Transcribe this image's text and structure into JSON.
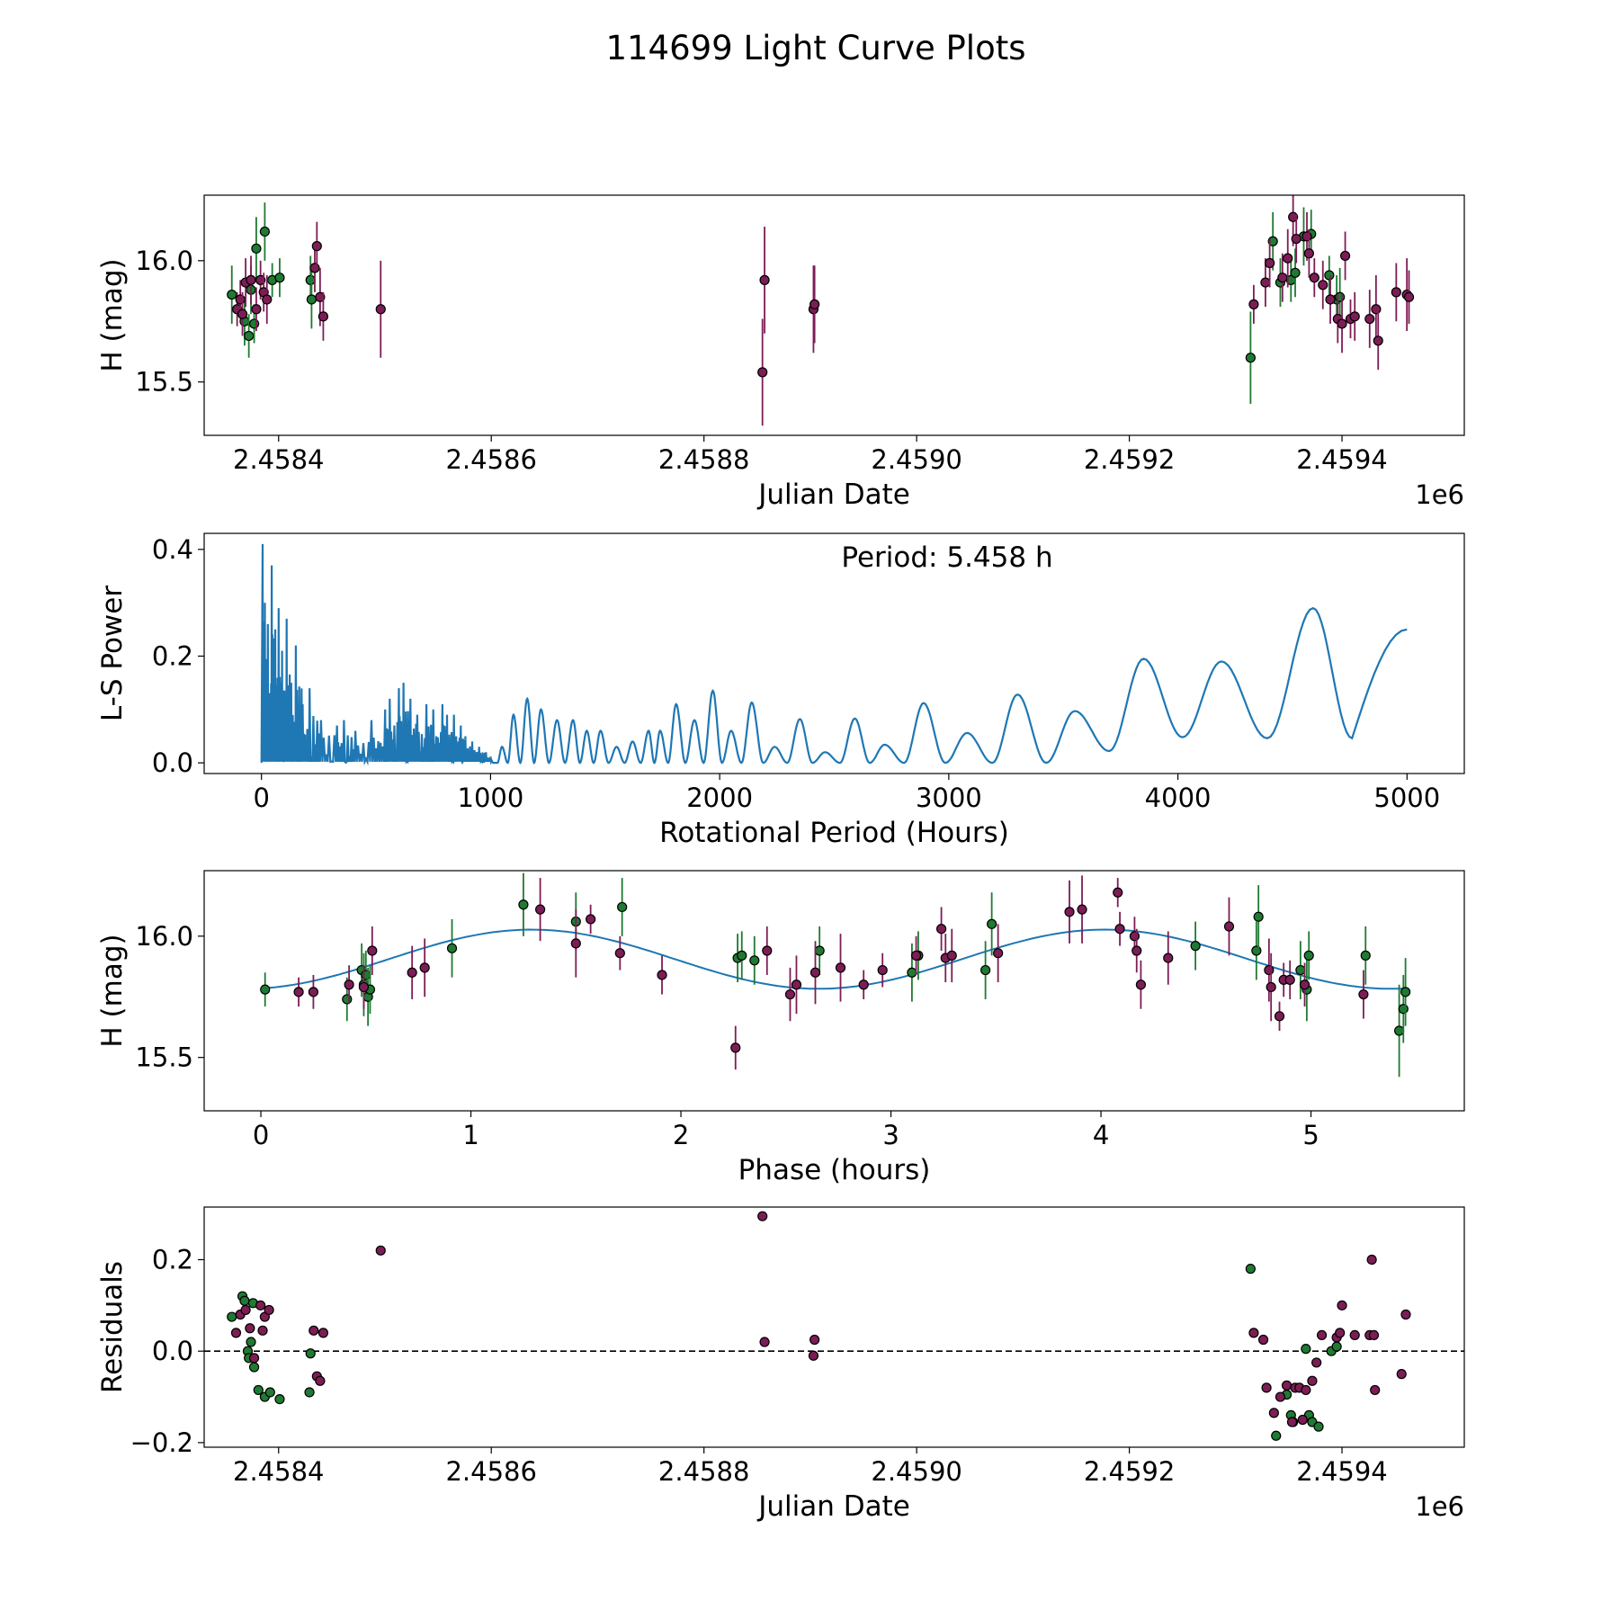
{
  "title": "114699 Light Curve Plots",
  "colors": {
    "green": "#1f7a32",
    "purple": "#7d1d55",
    "curve": "#1f77b4",
    "edge": "#000000"
  },
  "chart_data": [
    {
      "id": "lightcurve",
      "type": "scatter",
      "xlabel": "Julian Date",
      "ylabel": "H (mag)",
      "xlim": [
        2458330,
        2459515
      ],
      "ylim": [
        15.28,
        16.27
      ],
      "x_offset_label": "1e6",
      "xticks": [
        2458400,
        2458600,
        2458800,
        2459000,
        2459200,
        2459400
      ],
      "xtick_labels": [
        "2.4584",
        "2.4586",
        "2.4588",
        "2.4590",
        "2.4592",
        "2.4594"
      ],
      "yticks": [
        15.5,
        16.0
      ],
      "ytick_labels": [
        "15.5",
        "16.0"
      ],
      "series": [
        {
          "name": "green",
          "color": "#1f7a32",
          "x": [
            2458356,
            2458368,
            2458372,
            2458374,
            2458377,
            2458379,
            2458387,
            2458394,
            2458401,
            2458430,
            2458431,
            2459314,
            2459335,
            2459342,
            2459352,
            2459356,
            2459364,
            2459371,
            2459388,
            2459395,
            2459398
          ],
          "y": [
            15.86,
            15.75,
            15.69,
            15.88,
            15.74,
            16.05,
            16.12,
            15.92,
            15.93,
            15.92,
            15.84,
            15.6,
            16.08,
            15.91,
            15.92,
            15.95,
            16.1,
            16.11,
            15.94,
            15.84,
            15.85
          ],
          "err": [
            0.12,
            0.1,
            0.09,
            0.1,
            0.08,
            0.13,
            0.12,
            0.07,
            0.08,
            0.1,
            0.12,
            0.19,
            0.12,
            0.1,
            0.09,
            0.1,
            0.12,
            0.1,
            0.08,
            0.1,
            0.12
          ]
        },
        {
          "name": "purple",
          "color": "#7d1d55",
          "x": [
            2458361,
            2458364,
            2458366,
            2458369,
            2458374,
            2458379,
            2458383,
            2458386,
            2458389,
            2458434,
            2458436,
            2458439,
            2458442,
            2458496,
            2458855,
            2458857,
            2458903,
            2458904,
            2459317,
            2459328,
            2459332,
            2459344,
            2459349,
            2459354,
            2459357,
            2459367,
            2459369,
            2459374,
            2459382,
            2459389,
            2459396,
            2459400,
            2459403,
            2459408,
            2459412,
            2459426,
            2459432,
            2459434,
            2459451,
            2459461,
            2459463
          ],
          "y": [
            15.8,
            15.84,
            15.78,
            15.91,
            15.92,
            15.8,
            15.92,
            15.87,
            15.84,
            15.97,
            16.06,
            15.85,
            15.77,
            15.8,
            15.54,
            15.92,
            15.8,
            15.82,
            15.82,
            15.91,
            15.99,
            15.93,
            16.01,
            16.18,
            16.09,
            16.1,
            16.03,
            15.93,
            15.9,
            15.84,
            15.76,
            15.74,
            16.02,
            15.76,
            15.77,
            15.76,
            15.8,
            15.67,
            15.87,
            15.86,
            15.85
          ],
          "err": [
            0.07,
            0.08,
            0.09,
            0.1,
            0.1,
            0.09,
            0.08,
            0.08,
            0.1,
            0.1,
            0.1,
            0.12,
            0.1,
            0.2,
            0.22,
            0.22,
            0.18,
            0.16,
            0.08,
            0.1,
            0.1,
            0.1,
            0.12,
            0.12,
            0.1,
            0.1,
            0.1,
            0.08,
            0.1,
            0.1,
            0.1,
            0.12,
            0.1,
            0.08,
            0.1,
            0.12,
            0.14,
            0.12,
            0.12,
            0.15,
            0.11
          ]
        }
      ]
    },
    {
      "id": "periodogram",
      "type": "line",
      "xlabel": "Rotational Period (Hours)",
      "ylabel": "L-S Power",
      "xlim": [
        -250,
        5250
      ],
      "ylim": [
        -0.02,
        0.43
      ],
      "xticks": [
        0,
        1000,
        2000,
        3000,
        4000,
        5000
      ],
      "xtick_labels": [
        "0",
        "1000",
        "2000",
        "3000",
        "4000",
        "5000"
      ],
      "yticks": [
        0.0,
        0.2,
        0.4
      ],
      "ytick_labels": [
        "0.0",
        "0.2",
        "0.4"
      ],
      "annotation": "Period: 5.458 h",
      "low_period_spikes": {
        "x": [
          5,
          15,
          28,
          45,
          60,
          75,
          90,
          110,
          130,
          150,
          180,
          210,
          260,
          330,
          360,
          410,
          480,
          540,
          560,
          600,
          620,
          650,
          680,
          720,
          750,
          790,
          810,
          840,
          870,
          890,
          920,
          950,
          980
        ],
        "y": [
          0.41,
          0.3,
          0.26,
          0.37,
          0.25,
          0.29,
          0.21,
          0.27,
          0.15,
          0.22,
          0.11,
          0.14,
          0.08,
          0.07,
          0.08,
          0.06,
          0.08,
          0.1,
          0.12,
          0.14,
          0.15,
          0.12,
          0.09,
          0.11,
          0.1,
          0.11,
          0.09,
          0.09,
          0.07,
          0.05,
          0.04,
          0.03,
          0.02
        ]
      },
      "peak_periods": [
        1050,
        1100,
        1160,
        1220,
        1290,
        1360,
        1420,
        1480,
        1550,
        1620,
        1690,
        1740,
        1810,
        1890,
        1970,
        2050,
        2140,
        2240,
        2350,
        2460,
        2590,
        2720,
        2890,
        3080,
        3300,
        3550,
        3850,
        4190,
        4590
      ],
      "peak_powers": [
        0.03,
        0.09,
        0.12,
        0.1,
        0.08,
        0.08,
        0.06,
        0.06,
        0.03,
        0.04,
        0.06,
        0.06,
        0.11,
        0.08,
        0.135,
        0.06,
        0.113,
        0.03,
        0.082,
        0.02,
        0.083,
        0.034,
        0.112,
        0.056,
        0.128,
        0.097,
        0.195,
        0.19,
        0.29
      ],
      "trough_powers": [
        0.0,
        0.0,
        0.0,
        0.0,
        0.0,
        0.0,
        0.0,
        0.0,
        0.0,
        0.0,
        0.0,
        0.0,
        0.0,
        0.0,
        0.0,
        0.0,
        0.0,
        0.0,
        0.0,
        0.0,
        0.0,
        0.0,
        0.0,
        0.0,
        0.0,
        0.0,
        0.022,
        0.048,
        0.046
      ],
      "end_point": [
        5000,
        0.25
      ]
    },
    {
      "id": "phasefold",
      "type": "scatter",
      "xlabel": "Phase (hours)",
      "ylabel": "H (mag)",
      "xlim": [
        -0.27,
        5.73
      ],
      "ylim": [
        15.28,
        16.27
      ],
      "xticks": [
        0,
        1,
        2,
        3,
        4,
        5
      ],
      "xtick_labels": [
        "0",
        "1",
        "2",
        "3",
        "4",
        "5"
      ],
      "yticks": [
        15.5,
        16.0
      ],
      "ytick_labels": [
        "15.5",
        "16.0"
      ],
      "model": {
        "mean": 15.905,
        "amplitude": 0.122,
        "period": 2.729,
        "phase_of_max": 1.29
      },
      "series": [
        {
          "name": "green",
          "color": "#1f7a32",
          "x": [
            0.02,
            0.41,
            0.48,
            0.49,
            0.5,
            0.51,
            0.52,
            0.91,
            1.25,
            1.5,
            1.72,
            2.27,
            2.29,
            2.35,
            2.66,
            3.1,
            3.13,
            3.45,
            3.48,
            4.45,
            4.74,
            4.75,
            4.95,
            4.98,
            4.99,
            5.26,
            5.42,
            5.44,
            5.45
          ],
          "y": [
            15.78,
            15.74,
            15.86,
            15.8,
            15.84,
            15.75,
            15.78,
            15.95,
            16.13,
            16.06,
            16.12,
            15.91,
            15.92,
            15.9,
            15.94,
            15.85,
            15.92,
            15.86,
            16.05,
            15.96,
            15.94,
            16.08,
            15.86,
            15.78,
            15.92,
            15.92,
            15.61,
            15.7,
            15.77
          ],
          "err": [
            0.07,
            0.09,
            0.11,
            0.13,
            0.1,
            0.12,
            0.1,
            0.12,
            0.13,
            0.12,
            0.12,
            0.1,
            0.1,
            0.1,
            0.1,
            0.12,
            0.1,
            0.12,
            0.13,
            0.1,
            0.12,
            0.13,
            0.12,
            0.13,
            0.1,
            0.12,
            0.19,
            0.14,
            0.14
          ]
        },
        {
          "name": "purple",
          "color": "#7d1d55",
          "x": [
            0.18,
            0.25,
            0.42,
            0.49,
            0.53,
            0.72,
            0.78,
            1.33,
            1.5,
            1.57,
            1.71,
            1.91,
            2.26,
            2.41,
            2.52,
            2.55,
            2.64,
            2.76,
            2.87,
            2.96,
            3.12,
            3.24,
            3.26,
            3.29,
            3.51,
            3.85,
            3.91,
            4.08,
            4.09,
            4.16,
            4.17,
            4.19,
            4.32,
            4.61,
            4.8,
            4.81,
            4.85,
            4.87,
            4.9,
            4.97,
            5.25
          ],
          "y": [
            15.77,
            15.77,
            15.8,
            15.79,
            15.94,
            15.85,
            15.87,
            16.11,
            15.97,
            16.07,
            15.93,
            15.84,
            15.54,
            15.94,
            15.76,
            15.8,
            15.85,
            15.87,
            15.8,
            15.86,
            15.92,
            16.03,
            15.91,
            15.92,
            15.93,
            16.1,
            16.11,
            16.18,
            16.03,
            16.0,
            15.94,
            15.8,
            15.91,
            16.04,
            15.86,
            15.79,
            15.67,
            15.82,
            15.82,
            15.8,
            15.76
          ]
        }
      ]
    },
    {
      "id": "residuals",
      "type": "scatter",
      "xlabel": "Julian Date",
      "ylabel": "Residuals",
      "xlim": [
        2458330,
        2459515
      ],
      "ylim": [
        -0.21,
        0.315
      ],
      "x_offset_label": "1e6",
      "xticks": [
        2458400,
        2458600,
        2458800,
        2459000,
        2459200,
        2459400
      ],
      "xtick_labels": [
        "2.4584",
        "2.4586",
        "2.4588",
        "2.4590",
        "2.4592",
        "2.4594"
      ],
      "yticks": [
        -0.2,
        0.0,
        0.2
      ],
      "ytick_labels": [
        "−0.2",
        "0.0",
        "0.2"
      ],
      "reference_line": 0.0,
      "series": [
        {
          "name": "green",
          "color": "#1f7a32",
          "x": [
            2458356,
            2458366,
            2458368,
            2458371,
            2458372,
            2458374,
            2458376,
            2458377,
            2458381,
            2458387,
            2458392,
            2458401,
            2458429,
            2458430,
            2459314,
            2459338,
            2459348,
            2459352,
            2459354,
            2459366,
            2459369,
            2459372,
            2459378,
            2459390,
            2459395
          ],
          "y": [
            0.075,
            0.12,
            0.11,
            0.0,
            -0.015,
            0.02,
            0.105,
            -0.035,
            -0.085,
            -0.1,
            -0.09,
            -0.105,
            -0.09,
            -0.005,
            0.18,
            -0.185,
            -0.095,
            -0.14,
            -0.155,
            0.005,
            -0.14,
            -0.155,
            -0.165,
            0.0,
            0.01
          ]
        },
        {
          "name": "purple",
          "color": "#7d1d55",
          "x": [
            2458360,
            2458364,
            2458369,
            2458373,
            2458377,
            2458383,
            2458385,
            2458387,
            2458391,
            2458433,
            2458436,
            2458439,
            2458442,
            2458496,
            2458855,
            2458857,
            2458903,
            2458904,
            2459317,
            2459326,
            2459329,
            2459336,
            2459342,
            2459348,
            2459353,
            2459356,
            2459360,
            2459363,
            2459366,
            2459372,
            2459376,
            2459381,
            2459395,
            2459398,
            2459400,
            2459412,
            2459426,
            2459428,
            2459430,
            2459431,
            2459456,
            2459460
          ],
          "y": [
            0.04,
            0.08,
            0.09,
            0.05,
            -0.015,
            0.1,
            0.045,
            0.075,
            0.09,
            0.045,
            -0.055,
            -0.065,
            0.04,
            0.22,
            0.295,
            0.02,
            -0.01,
            0.025,
            0.04,
            0.025,
            -0.08,
            -0.135,
            -0.1,
            -0.075,
            -0.155,
            -0.08,
            -0.08,
            -0.15,
            -0.085,
            -0.065,
            -0.025,
            0.035,
            0.03,
            0.04,
            0.1,
            0.035,
            0.035,
            0.2,
            0.035,
            -0.085,
            -0.05,
            0.08
          ]
        }
      ]
    }
  ]
}
